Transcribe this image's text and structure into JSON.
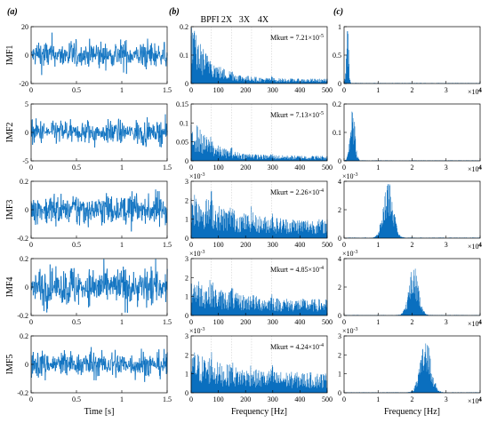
{
  "panel_labels": [
    "(a)",
    "(b)",
    "(c)"
  ],
  "harmonic_labels": [
    "BPFI",
    "2X",
    "3X",
    "4X"
  ],
  "harmonic_freqs": [
    74,
    148,
    222,
    296
  ],
  "series_color": "#0a6fbf",
  "grid_color": "#d0d0d0",
  "chart_data": [
    {
      "type": "line",
      "column": "a",
      "xlabel": "Time [s]",
      "xlim": [
        0,
        1.5
      ],
      "xticks": [
        "0",
        "0.5",
        "1",
        "1.5"
      ],
      "grid": false,
      "rows": [
        {
          "ylabel": "IMF1",
          "ylim": [
            -20,
            20
          ],
          "yticks": [
            "-20",
            "0",
            "20"
          ],
          "signal_amplitude": 12
        },
        {
          "ylabel": "IMF2",
          "ylim": [
            -5,
            5
          ],
          "yticks": [
            "-5",
            "0",
            "5"
          ],
          "signal_amplitude": 2.5
        },
        {
          "ylabel": "IMF3",
          "ylim": [
            -0.2,
            0.2
          ],
          "yticks": [
            "-0.2",
            "0",
            "0.2"
          ],
          "signal_amplitude": 0.14
        },
        {
          "ylabel": "IMF4",
          "ylim": [
            -0.2,
            0.2
          ],
          "yticks": [
            "-0.2",
            "0",
            "0.2"
          ],
          "signal_amplitude": 0.17
        },
        {
          "ylabel": "IMF5",
          "ylim": [
            -0.2,
            0.2
          ],
          "yticks": [
            "-0.2",
            "0",
            "0.2"
          ],
          "signal_amplitude": 0.12
        }
      ]
    },
    {
      "type": "line",
      "column": "b",
      "xlabel": "Frequency [Hz]",
      "xlim": [
        0,
        500
      ],
      "xticks": [
        "0",
        "100",
        "200",
        "300",
        "400",
        "500"
      ],
      "grid": true,
      "rows": [
        {
          "ylim": [
            0,
            0.2
          ],
          "yticks": [
            "0",
            "0.1",
            "0.2"
          ],
          "exponent": "",
          "annotation": "Mkurt = 7.21×10",
          "annotation_exp": "-5",
          "peak": 0.16,
          "floor": 0.012
        },
        {
          "ylim": [
            0,
            0.15
          ],
          "yticks": [
            "0",
            "0.05",
            "0.1",
            "0.15"
          ],
          "exponent": "",
          "annotation": "Mkurt = 7.13×10",
          "annotation_exp": "-5",
          "peak": 0.09,
          "floor": 0.01
        },
        {
          "ylim": [
            0,
            3
          ],
          "yticks": [
            "0",
            "1",
            "2",
            "3"
          ],
          "exponent": "×10",
          "exponent_sup": "-3",
          "annotation": "Mkurt = 2.26×10",
          "annotation_exp": "-4",
          "peak": 2.0,
          "floor": 0.7
        },
        {
          "ylim": [
            0,
            3
          ],
          "yticks": [
            "0",
            "1",
            "2",
            "3"
          ],
          "exponent": "×10",
          "exponent_sup": "-3",
          "annotation": "Mkurt = 4.85×10",
          "annotation_exp": "-4",
          "peak": 1.6,
          "floor": 0.6
        },
        {
          "ylim": [
            0,
            3
          ],
          "yticks": [
            "0",
            "1",
            "2",
            "3"
          ],
          "exponent": "×10",
          "exponent_sup": "-3",
          "annotation": "Mkurt = 4.24×10",
          "annotation_exp": "-4",
          "peak": 1.7,
          "floor": 0.75
        }
      ]
    },
    {
      "type": "line",
      "column": "c",
      "xlabel": "Frequency [Hz]",
      "xlim": [
        0,
        4
      ],
      "xticks": [
        "0",
        "1",
        "2",
        "3",
        "4"
      ],
      "x_exponent": "×10",
      "x_exponent_sup": "4",
      "grid": false,
      "rows": [
        {
          "ylim": [
            0,
            1
          ],
          "yticks": [
            "0",
            "0.5",
            "1"
          ],
          "exponent": "",
          "center": 0.1,
          "width": 0.05,
          "peak": 0.92
        },
        {
          "ylim": [
            0,
            0.2
          ],
          "yticks": [
            "0",
            "0.1",
            "0.2"
          ],
          "exponent": "",
          "center": 0.25,
          "width": 0.1,
          "peak": 0.17
        },
        {
          "ylim": [
            0,
            4
          ],
          "yticks": [
            "0",
            "2",
            "4"
          ],
          "exponent": "×10",
          "exponent_sup": "-3",
          "center": 1.3,
          "width": 0.2,
          "peak": 3.8
        },
        {
          "ylim": [
            0,
            4
          ],
          "yticks": [
            "0",
            "2",
            "4"
          ],
          "exponent": "×10",
          "exponent_sup": "-3",
          "center": 2.05,
          "width": 0.2,
          "peak": 3.2
        },
        {
          "ylim": [
            0,
            3
          ],
          "yticks": [
            "0",
            "1",
            "2",
            "3"
          ],
          "exponent": "×10",
          "exponent_sup": "-3",
          "center": 2.4,
          "width": 0.22,
          "peak": 2.6
        }
      ]
    }
  ]
}
